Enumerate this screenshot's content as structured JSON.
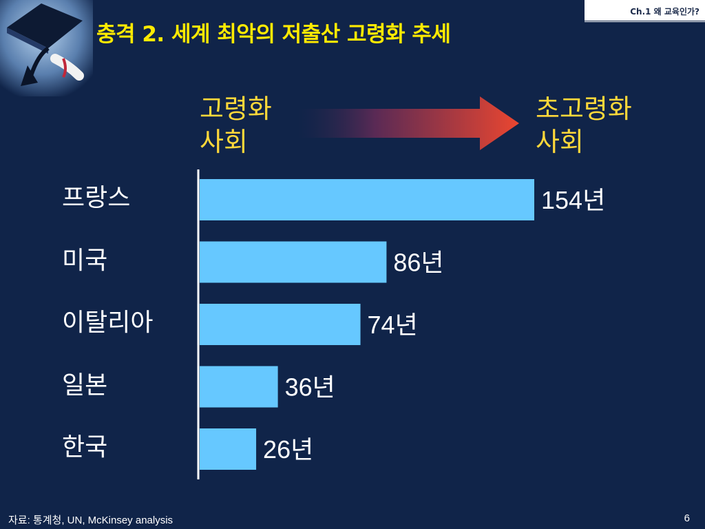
{
  "header": {
    "chapter": "Ch.1 왜 교육인가?",
    "title": "충격 2. 세계 최악의 저출산 고령화 추세"
  },
  "stages": {
    "from": "고령화\n사회",
    "to": "초고령화\n사회"
  },
  "chart_data": {
    "type": "bar",
    "orientation": "horizontal",
    "title": "",
    "xlabel": "",
    "ylabel": "",
    "categories": [
      "프랑스",
      "미국",
      "이탈리아",
      "일본",
      "한국"
    ],
    "values": [
      154,
      86,
      74,
      36,
      26
    ],
    "value_labels": [
      "154년",
      "86년",
      "74년",
      "36년",
      "26년"
    ],
    "unit": "년",
    "xlim": [
      0,
      154
    ],
    "grid": false,
    "legend": "none",
    "bar_color": "#66c8ff",
    "label_color": "#ffffff"
  },
  "footer": {
    "source": "자료: 통계청, UN, McKinsey analysis",
    "page": "6"
  },
  "colors": {
    "background": "#102449",
    "title": "#ffea00",
    "stage": "#ffd83a",
    "arrow_start": "#2a3a78",
    "arrow_end": "#e8442e"
  }
}
